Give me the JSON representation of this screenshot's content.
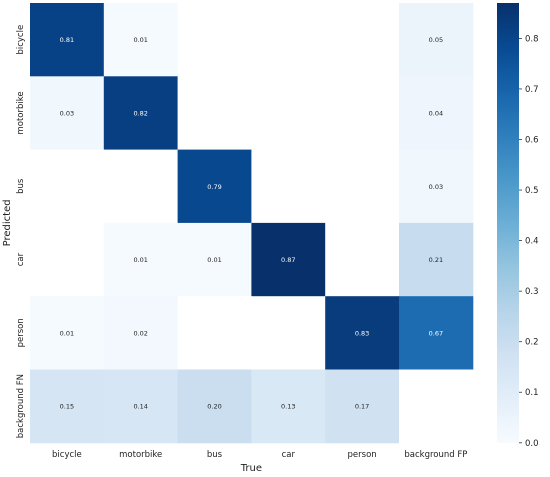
{
  "chart_data": {
    "type": "heatmap",
    "title": "",
    "xlabel": "True",
    "ylabel": "Predicted",
    "x_categories": [
      "bicycle",
      "motorbike",
      "bus",
      "car",
      "person",
      "background FP"
    ],
    "y_categories": [
      "bicycle",
      "motorbike",
      "bus",
      "car",
      "person",
      "background FN"
    ],
    "values": [
      [
        0.81,
        0.01,
        null,
        null,
        null,
        0.05
      ],
      [
        0.03,
        0.82,
        null,
        null,
        null,
        0.04
      ],
      [
        null,
        null,
        0.79,
        null,
        null,
        0.03
      ],
      [
        null,
        0.01,
        0.01,
        0.87,
        null,
        0.21
      ],
      [
        0.01,
        0.02,
        null,
        null,
        0.83,
        0.67
      ],
      [
        0.15,
        0.14,
        0.2,
        0.13,
        0.17,
        null
      ]
    ],
    "value_labels": [
      [
        "0.81",
        "0.01",
        "",
        "",
        "",
        "0.05"
      ],
      [
        "0.03",
        "0.82",
        "",
        "",
        "",
        "0.04"
      ],
      [
        "",
        "",
        "0.79",
        "",
        "",
        "0.03"
      ],
      [
        "",
        "0.01",
        "0.01",
        "0.87",
        "",
        "0.21"
      ],
      [
        "0.01",
        "0.02",
        "",
        "",
        "0.83",
        "0.67"
      ],
      [
        "0.15",
        "0.14",
        "0.20",
        "0.13",
        "0.17",
        ""
      ]
    ],
    "colorscale": "Blues",
    "color_low": "#f7fbff",
    "color_high": "#08306b",
    "colorbar": {
      "vmin": 0.0,
      "vmax": 0.87,
      "ticks": [
        0.0,
        0.1,
        0.2,
        0.3,
        0.4,
        0.5,
        0.6,
        0.7,
        0.8
      ],
      "tick_labels": [
        "0.0",
        "0.1",
        "0.2",
        "0.3",
        "0.4",
        "0.5",
        "0.6",
        "0.7",
        "0.8"
      ]
    },
    "grid": false,
    "legend": "colorbar-right"
  }
}
